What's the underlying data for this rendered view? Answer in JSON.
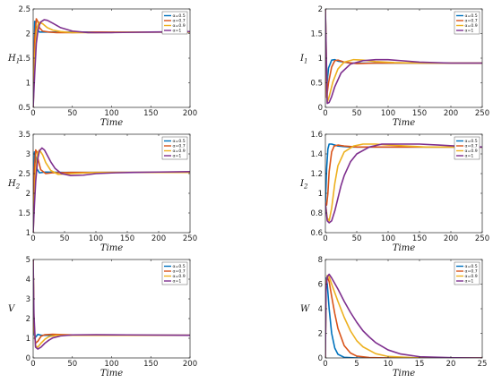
{
  "colors": [
    "#0072bd",
    "#d95319",
    "#edb120",
    "#7e2f8e"
  ],
  "chart_data": [
    {
      "type": "line",
      "ylabel": "H",
      "ylabel_sub": "1",
      "xlabel": "Time",
      "xlim": [
        0,
        200
      ],
      "ylim": [
        0.5,
        2.5
      ],
      "xticks": [
        "0",
        "50",
        "100",
        "150",
        "200"
      ],
      "yticks": [
        "0.5",
        "1",
        "1.5",
        "2",
        "2.5"
      ],
      "legend": [
        "α=0.5",
        "α=0.7",
        "α=0.9",
        "α=1"
      ],
      "series": [
        {
          "name": "α=0.5",
          "x": [
            0,
            2,
            4,
            8,
            15,
            30,
            60,
            100,
            150,
            200
          ],
          "y": [
            0.5,
            2.25,
            2.1,
            2.03,
            2.03,
            2.03,
            2.03,
            2.03,
            2.03,
            2.03
          ]
        },
        {
          "name": "α=0.7",
          "x": [
            0,
            2,
            4,
            6,
            8,
            12,
            20,
            30,
            50,
            80,
            120,
            200
          ],
          "y": [
            0.5,
            1.9,
            2.3,
            2.24,
            2.12,
            2.05,
            2.03,
            2.02,
            2.02,
            2.03,
            2.03,
            2.03
          ]
        },
        {
          "name": "α=0.9",
          "x": [
            0,
            2,
            4,
            6,
            8,
            12,
            18,
            25,
            35,
            50,
            80,
            120,
            200
          ],
          "y": [
            0.5,
            1.5,
            2.05,
            2.18,
            2.23,
            2.2,
            2.12,
            2.07,
            2.04,
            2.02,
            2.02,
            2.03,
            2.03
          ]
        },
        {
          "name": "α=1",
          "x": [
            0,
            2,
            4,
            6,
            8,
            10,
            14,
            18,
            25,
            35,
            50,
            70,
            100,
            150,
            200
          ],
          "y": [
            0.5,
            1.2,
            1.8,
            2.05,
            2.18,
            2.24,
            2.28,
            2.27,
            2.21,
            2.12,
            2.05,
            2.02,
            2.02,
            2.03,
            2.04
          ]
        }
      ]
    },
    {
      "type": "line",
      "ylabel": "I",
      "ylabel_sub": "1",
      "xlabel": "Time",
      "xlim": [
        0,
        250
      ],
      "ylim": [
        0,
        2
      ],
      "xticks": [
        "0",
        "50",
        "100",
        "150",
        "200",
        "250"
      ],
      "yticks": [
        "0",
        "0.5",
        "1",
        "1.5",
        "2"
      ],
      "legend": [
        "α=0.5",
        "α=0.7",
        "α=0.9",
        "α=1"
      ],
      "series": [
        {
          "name": "α=0.5",
          "x": [
            0,
            2,
            5,
            10,
            15,
            20,
            40,
            80,
            150,
            250
          ],
          "y": [
            2,
            0.4,
            0.8,
            0.96,
            0.97,
            0.94,
            0.9,
            0.9,
            0.9,
            0.9
          ]
        },
        {
          "name": "α=0.7",
          "x": [
            0,
            2,
            5,
            10,
            15,
            20,
            30,
            50,
            80,
            150,
            250
          ],
          "y": [
            2,
            0.2,
            0.5,
            0.82,
            0.95,
            0.96,
            0.92,
            0.89,
            0.9,
            0.9,
            0.9
          ]
        },
        {
          "name": "α=0.9",
          "x": [
            0,
            3,
            6,
            12,
            20,
            30,
            45,
            60,
            80,
            110,
            150,
            250
          ],
          "y": [
            2,
            0.1,
            0.22,
            0.52,
            0.78,
            0.92,
            0.97,
            0.96,
            0.93,
            0.91,
            0.9,
            0.9
          ]
        },
        {
          "name": "α=1",
          "x": [
            0,
            3,
            6,
            10,
            15,
            25,
            40,
            60,
            80,
            100,
            120,
            150,
            200,
            250
          ],
          "y": [
            2,
            0.08,
            0.1,
            0.22,
            0.42,
            0.7,
            0.88,
            0.95,
            0.97,
            0.97,
            0.95,
            0.92,
            0.9,
            0.9
          ]
        }
      ]
    },
    {
      "type": "line",
      "ylabel": "H",
      "ylabel_sub": "2",
      "xlabel": "Time",
      "xlim": [
        0,
        250
      ],
      "ylim": [
        1,
        3.5
      ],
      "xticks": [
        "0",
        "50",
        "100",
        "150",
        "200",
        "250"
      ],
      "yticks": [
        "1",
        "1.5",
        "2",
        "2.5",
        "3",
        "3.5"
      ],
      "legend": [
        "α=0.5",
        "α=0.7",
        "α=0.9",
        "α=1"
      ],
      "series": [
        {
          "name": "α=0.5",
          "x": [
            0,
            2,
            4,
            6,
            10,
            20,
            50,
            100,
            150,
            250
          ],
          "y": [
            1,
            3.05,
            2.9,
            2.62,
            2.52,
            2.54,
            2.53,
            2.53,
            2.53,
            2.53
          ]
        },
        {
          "name": "α=0.7",
          "x": [
            0,
            2,
            4,
            6,
            8,
            12,
            20,
            30,
            60,
            100,
            150,
            250
          ],
          "y": [
            1,
            2.6,
            3.1,
            3.05,
            2.85,
            2.6,
            2.5,
            2.52,
            2.53,
            2.53,
            2.53,
            2.53
          ]
        },
        {
          "name": "α=0.9",
          "x": [
            0,
            2,
            4,
            7,
            10,
            15,
            20,
            28,
            40,
            60,
            100,
            150,
            250
          ],
          "y": [
            1,
            1.9,
            2.6,
            3.02,
            3.1,
            2.98,
            2.78,
            2.58,
            2.48,
            2.5,
            2.53,
            2.53,
            2.53
          ]
        },
        {
          "name": "α=1",
          "x": [
            0,
            2,
            4,
            7,
            10,
            14,
            18,
            22,
            28,
            35,
            45,
            60,
            80,
            100,
            130,
            160,
            200,
            250
          ],
          "y": [
            1,
            1.7,
            2.3,
            2.85,
            3.08,
            3.15,
            3.1,
            2.98,
            2.8,
            2.63,
            2.5,
            2.45,
            2.46,
            2.5,
            2.52,
            2.53,
            2.54,
            2.55
          ]
        }
      ]
    },
    {
      "type": "line",
      "ylabel": "I",
      "ylabel_sub": "2",
      "xlabel": "Time",
      "xlim": [
        0,
        250
      ],
      "ylim": [
        0.6,
        1.6
      ],
      "xticks": [
        "0",
        "50",
        "100",
        "150",
        "200",
        "250"
      ],
      "yticks": [
        "0.6",
        "0.8",
        "1",
        "1.2",
        "1.4",
        "1.6"
      ],
      "legend": [
        "α=0.5",
        "α=0.7",
        "α=0.9",
        "α=1"
      ],
      "series": [
        {
          "name": "α=0.5",
          "x": [
            0,
            2,
            4,
            6,
            10,
            20,
            40,
            80,
            150,
            250
          ],
          "y": [
            0.9,
            1.25,
            1.45,
            1.5,
            1.5,
            1.48,
            1.47,
            1.47,
            1.47,
            1.47
          ]
        },
        {
          "name": "α=0.7",
          "x": [
            0,
            2,
            4,
            6,
            10,
            14,
            20,
            30,
            50,
            80,
            150,
            250
          ],
          "y": [
            0.9,
            0.88,
            1.0,
            1.22,
            1.42,
            1.48,
            1.49,
            1.48,
            1.47,
            1.47,
            1.47,
            1.47
          ]
        },
        {
          "name": "α=0.9",
          "x": [
            0,
            3,
            6,
            10,
            15,
            20,
            30,
            45,
            60,
            80,
            100,
            130,
            160,
            200,
            250
          ],
          "y": [
            0.9,
            0.75,
            0.72,
            0.85,
            1.1,
            1.28,
            1.42,
            1.48,
            1.5,
            1.5,
            1.49,
            1.48,
            1.47,
            1.47,
            1.47
          ]
        },
        {
          "name": "α=1",
          "x": [
            0,
            3,
            6,
            10,
            15,
            20,
            25,
            30,
            40,
            50,
            70,
            90,
            120,
            150,
            180,
            210,
            250
          ],
          "y": [
            0.9,
            0.72,
            0.7,
            0.72,
            0.82,
            0.95,
            1.08,
            1.18,
            1.32,
            1.4,
            1.47,
            1.5,
            1.5,
            1.5,
            1.49,
            1.48,
            1.47
          ]
        }
      ]
    },
    {
      "type": "line",
      "ylabel": "V",
      "ylabel_sub": "",
      "xlabel": "Time",
      "xlim": [
        0,
        200
      ],
      "ylim": [
        0,
        5
      ],
      "xticks": [
        "0",
        "50",
        "100",
        "150",
        "200"
      ],
      "yticks": [
        "0",
        "1",
        "2",
        "3",
        "4",
        "5"
      ],
      "legend": [
        "α=0.5",
        "α=0.7",
        "α=0.9",
        "α=1"
      ],
      "series": [
        {
          "name": "α=0.5",
          "x": [
            0,
            1,
            3,
            6,
            10,
            20,
            50,
            100,
            150,
            200
          ],
          "y": [
            5,
            1.2,
            1.05,
            1.2,
            1.15,
            1.15,
            1.15,
            1.15,
            1.15,
            1.15
          ]
        },
        {
          "name": "α=0.7",
          "x": [
            0,
            1,
            3,
            6,
            10,
            15,
            25,
            50,
            100,
            200
          ],
          "y": [
            5,
            1.5,
            0.75,
            0.85,
            1.1,
            1.18,
            1.2,
            1.17,
            1.15,
            1.15
          ]
        },
        {
          "name": "α=0.9",
          "x": [
            0,
            1,
            3,
            6,
            10,
            15,
            20,
            30,
            50,
            100,
            200
          ],
          "y": [
            5,
            1.8,
            0.6,
            0.55,
            0.75,
            0.95,
            1.08,
            1.15,
            1.15,
            1.15,
            1.15
          ]
        },
        {
          "name": "α=1",
          "x": [
            0,
            1,
            3,
            6,
            10,
            15,
            20,
            25,
            35,
            50,
            80,
            120,
            200
          ],
          "y": [
            5,
            2.2,
            0.55,
            0.45,
            0.55,
            0.75,
            0.9,
            1.02,
            1.12,
            1.17,
            1.18,
            1.17,
            1.15
          ]
        }
      ]
    },
    {
      "type": "line",
      "ylabel": "W",
      "ylabel_sub": "",
      "xlabel": "Time",
      "xlim": [
        0,
        25
      ],
      "ylim": [
        0,
        8
      ],
      "xticks": [
        "0",
        "5",
        "10",
        "15",
        "20",
        "25"
      ],
      "yticks": [
        "0",
        "2",
        "4",
        "6",
        "8"
      ],
      "legend": [
        "α=0.5",
        "α=0.7",
        "α=0.9",
        "α=1"
      ],
      "series": [
        {
          "name": "α=0.5",
          "x": [
            0,
            0.1,
            0.3,
            0.6,
            1,
            1.5,
            2,
            3,
            5,
            10,
            25
          ],
          "y": [
            0,
            6.5,
            6.0,
            4.0,
            2.0,
            0.8,
            0.3,
            0.05,
            0,
            0,
            0
          ]
        },
        {
          "name": "α=0.7",
          "x": [
            0,
            0.1,
            0.3,
            0.6,
            1,
            1.5,
            2,
            3,
            4,
            5,
            7,
            10,
            25
          ],
          "y": [
            0,
            6.0,
            6.6,
            6.2,
            5.0,
            3.6,
            2.4,
            1.0,
            0.4,
            0.15,
            0.03,
            0,
            0
          ]
        },
        {
          "name": "α=0.9",
          "x": [
            0,
            0.1,
            0.3,
            0.6,
            1,
            2,
            3,
            4,
            5,
            6,
            8,
            10,
            14,
            25
          ],
          "y": [
            0,
            5.8,
            6.7,
            6.6,
            6.0,
            4.6,
            3.3,
            2.2,
            1.4,
            0.9,
            0.35,
            0.12,
            0.02,
            0
          ]
        },
        {
          "name": "α=1",
          "x": [
            0,
            0.1,
            0.3,
            0.6,
            1,
            2,
            3,
            4,
            5,
            6,
            7,
            8,
            10,
            12,
            15,
            20,
            25
          ],
          "y": [
            0,
            5.5,
            6.6,
            6.8,
            6.5,
            5.6,
            4.6,
            3.7,
            2.9,
            2.2,
            1.7,
            1.25,
            0.65,
            0.32,
            0.1,
            0.02,
            0
          ]
        }
      ]
    }
  ]
}
